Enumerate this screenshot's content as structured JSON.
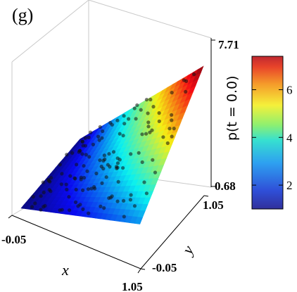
{
  "panel_label": "(g)",
  "chart_data": {
    "type": "surface3d",
    "title": "",
    "xlabel": "x",
    "ylabel": "y",
    "zlabel": "p(t = 0.0)",
    "x_ticks": [
      "-0.05",
      "1.05"
    ],
    "y_ticks": [
      "-0.05",
      "1.05"
    ],
    "z_ticks": [
      "0.68",
      "7.71"
    ],
    "xlim": [
      -0.05,
      1.05
    ],
    "ylim": [
      -0.05,
      1.05
    ],
    "zlim": [
      0.68,
      7.71
    ],
    "surface": "p = 1 + (e - 1)·x + (e^2 - e)·x·y (approx., increasing in x and y)",
    "surface_samples": {
      "x": [
        0.0,
        0.25,
        0.5,
        0.75,
        1.0
      ],
      "y": [
        0.0,
        0.25,
        0.5,
        0.75,
        1.0
      ],
      "p": [
        [
          1.0,
          1.0,
          1.0,
          1.0,
          1.0
        ],
        [
          1.43,
          1.71,
          1.99,
          2.27,
          2.55
        ],
        [
          1.86,
          2.42,
          2.98,
          3.54,
          4.1
        ],
        [
          2.29,
          3.13,
          3.97,
          4.81,
          5.65
        ],
        [
          2.72,
          3.84,
          4.96,
          6.08,
          7.2
        ]
      ]
    },
    "colormap": "jet",
    "colorbar": {
      "min": 1.0,
      "max": 7.4,
      "ticks": [
        2,
        4,
        6
      ],
      "tick_labels": [
        "2",
        "4",
        "6"
      ],
      "position": "right"
    },
    "scatter_points": "dark markers scattered over the surface (collocation points)",
    "grid": false,
    "colors": {
      "low": "#2f30a8",
      "mid": "#f5e83a",
      "high": "#c8242c",
      "points": "#111111"
    }
  }
}
